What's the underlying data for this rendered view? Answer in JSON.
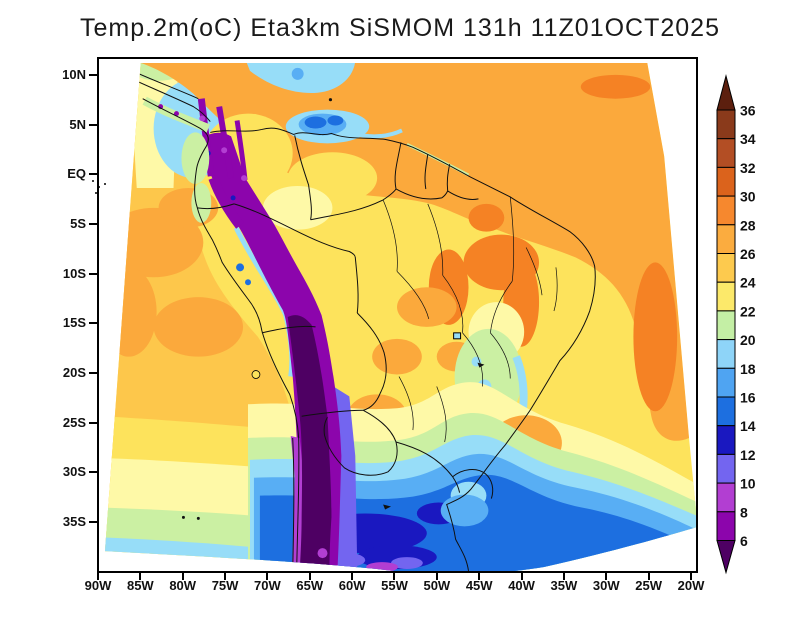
{
  "title": "Temp.2m(oC) Eta3km SiSMOM 131h 11Z01OCT2025",
  "axes": {
    "y_labels": [
      "10N",
      "5N",
      "EQ",
      "5S",
      "10S",
      "15S",
      "20S",
      "25S",
      "30S",
      "35S"
    ],
    "x_labels": [
      "90W",
      "85W",
      "80W",
      "75W",
      "70W",
      "65W",
      "60W",
      "55W",
      "50W",
      "45W",
      "40W",
      "35W",
      "30W",
      "25W",
      "20W"
    ]
  },
  "colorbar": {
    "tick_labels": [
      "36",
      "34",
      "32",
      "30",
      "28",
      "26",
      "24",
      "22",
      "20",
      "18",
      "16",
      "14",
      "12",
      "10",
      "8",
      "6"
    ],
    "segment_colors": [
      "#8A3A1B",
      "#B34E24",
      "#DB631C",
      "#F6882E",
      "#FBAC3F",
      "#FDCA4E",
      "#FCE96A",
      "#C4EFA5",
      "#8ED4F8",
      "#4FA4F2",
      "#1D6FE0",
      "#1A18C0",
      "#7365F0",
      "#B23ED2",
      "#8C05AC"
    ],
    "arrow_above_color": "#5C1F0E",
    "arrow_below_color": "#4E0063"
  },
  "palette": {
    "deepOrange": "#F58224",
    "orange": "#FBA93C",
    "yellowOrange": "#FDC74B",
    "yellow": "#FDE35C",
    "paleYellow": "#FEF9A7",
    "paleGreen": "#CBF0A3",
    "cyan": "#97DDF8",
    "lightBlue": "#58AEF4",
    "blue": "#1D6FE0",
    "navy": "#1A18C0",
    "violet": "#7365F0",
    "magenta": "#B23ED2",
    "purple": "#8C05AC",
    "darkPurple": "#4E0063",
    "borderline": "#101010"
  }
}
